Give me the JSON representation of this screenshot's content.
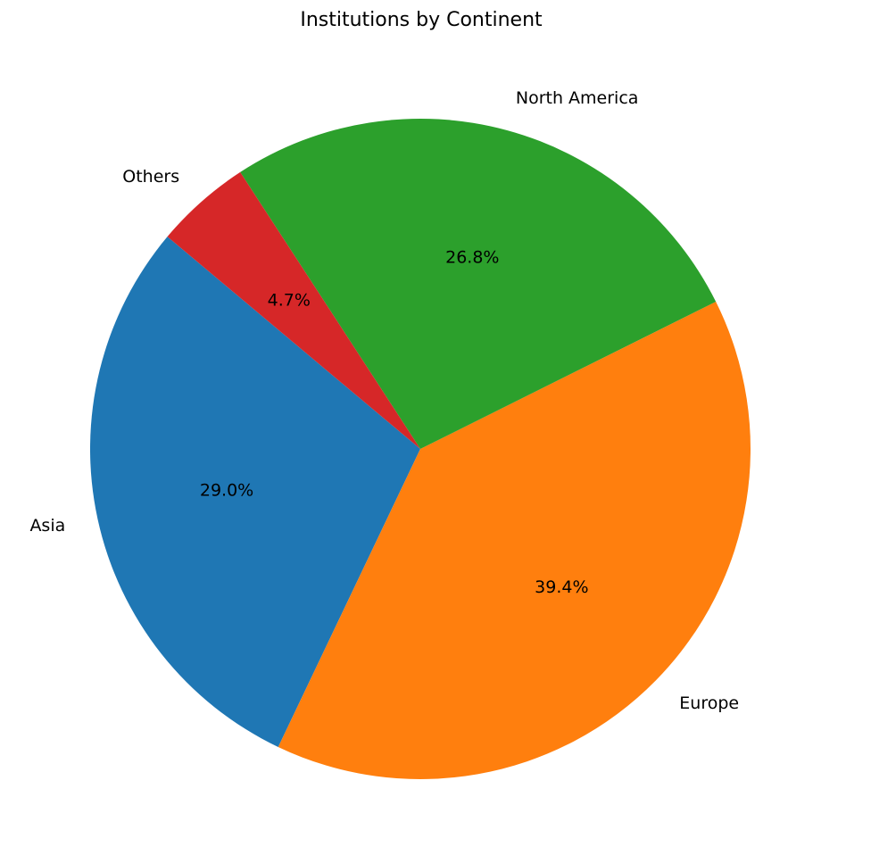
{
  "chart_data": {
    "type": "pie",
    "title": "Institutions by Continent",
    "labels": [
      "Asia",
      "Europe",
      "North America",
      "Others"
    ],
    "values": [
      29.0,
      39.4,
      26.8,
      4.7
    ],
    "value_labels": [
      "29.0%",
      "39.4%",
      "26.8%",
      "4.7%"
    ],
    "colors": [
      "#1f77b4",
      "#ff7f0e",
      "#2ca02c",
      "#d62728"
    ],
    "start_angle_deg": 140,
    "direction": "counterclockwise",
    "legend": "none"
  }
}
